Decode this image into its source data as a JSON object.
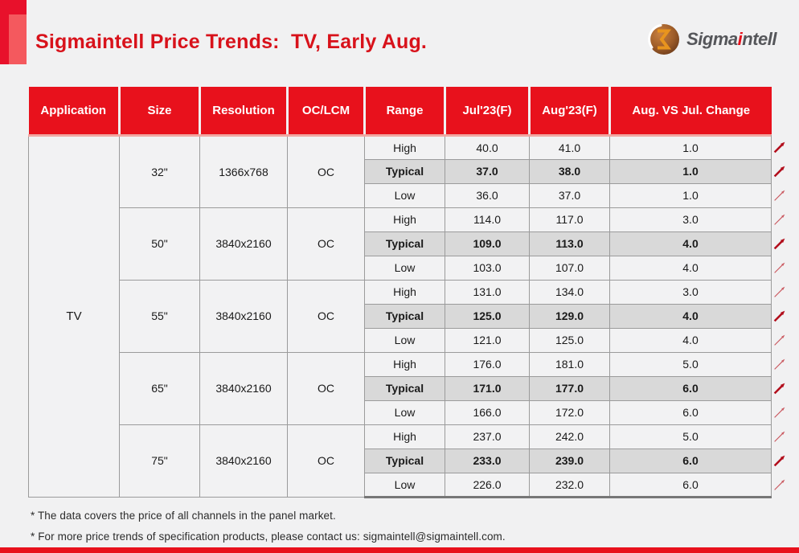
{
  "theme": {
    "page_bg": "#F1F1F2",
    "header_red": "#E8111C",
    "title_red": "#D8121B",
    "accent_dark": "#E8112B",
    "accent_light": "#F4595E",
    "pink_line": "#F1A7A2",
    "grid_gray": "#9B9B9B",
    "row_bg": "#F2F2F3",
    "typical_bg": "#D9D9D9",
    "table_bottom": "#777777",
    "logo_gray": "#55565A",
    "arrow_bold_color": "#B20E1C",
    "arrow_thin_color": "#C9555C"
  },
  "header": {
    "title": "Sigmaintell Price Trends:  TV, Early Aug.",
    "logo_text_pre": "Sigma",
    "logo_text_accent": "i",
    "logo_text_post": "ntell"
  },
  "table": {
    "columns": [
      "Application",
      "Size",
      "Resolution",
      "OC/LCM",
      "Range",
      "Jul'23(F)",
      "Aug'23(F)",
      "Aug. VS Jul. Change"
    ],
    "application": "TV",
    "groups": [
      {
        "size": "32\"",
        "resolution": "1366x768",
        "oc_lcm": "OC",
        "rows": [
          {
            "range": "High",
            "jul": "40.0",
            "aug": "41.0",
            "change": "1.0",
            "arrow": "bold",
            "emphasis": false
          },
          {
            "range": "Typical",
            "jul": "37.0",
            "aug": "38.0",
            "change": "1.0",
            "arrow": "bold",
            "emphasis": true
          },
          {
            "range": "Low",
            "jul": "36.0",
            "aug": "37.0",
            "change": "1.0",
            "arrow": "thin",
            "emphasis": false
          }
        ]
      },
      {
        "size": "50\"",
        "resolution": "3840x2160",
        "oc_lcm": "OC",
        "rows": [
          {
            "range": "High",
            "jul": "114.0",
            "aug": "117.0",
            "change": "3.0",
            "arrow": "thin",
            "emphasis": false
          },
          {
            "range": "Typical",
            "jul": "109.0",
            "aug": "113.0",
            "change": "4.0",
            "arrow": "bold",
            "emphasis": true
          },
          {
            "range": "Low",
            "jul": "103.0",
            "aug": "107.0",
            "change": "4.0",
            "arrow": "thin",
            "emphasis": false
          }
        ]
      },
      {
        "size": "55\"",
        "resolution": "3840x2160",
        "oc_lcm": "OC",
        "rows": [
          {
            "range": "High",
            "jul": "131.0",
            "aug": "134.0",
            "change": "3.0",
            "arrow": "thin",
            "emphasis": false
          },
          {
            "range": "Typical",
            "jul": "125.0",
            "aug": "129.0",
            "change": "4.0",
            "arrow": "bold",
            "emphasis": true
          },
          {
            "range": "Low",
            "jul": "121.0",
            "aug": "125.0",
            "change": "4.0",
            "arrow": "thin",
            "emphasis": false
          }
        ]
      },
      {
        "size": "65\"",
        "resolution": "3840x2160",
        "oc_lcm": "OC",
        "rows": [
          {
            "range": "High",
            "jul": "176.0",
            "aug": "181.0",
            "change": "5.0",
            "arrow": "thin",
            "emphasis": false
          },
          {
            "range": "Typical",
            "jul": "171.0",
            "aug": "177.0",
            "change": "6.0",
            "arrow": "bold",
            "emphasis": true
          },
          {
            "range": "Low",
            "jul": "166.0",
            "aug": "172.0",
            "change": "6.0",
            "arrow": "thin",
            "emphasis": false
          }
        ]
      },
      {
        "size": "75\"",
        "resolution": "3840x2160",
        "oc_lcm": "OC",
        "rows": [
          {
            "range": "High",
            "jul": "237.0",
            "aug": "242.0",
            "change": "5.0",
            "arrow": "thin",
            "emphasis": false
          },
          {
            "range": "Typical",
            "jul": "233.0",
            "aug": "239.0",
            "change": "6.0",
            "arrow": "bold",
            "emphasis": true
          },
          {
            "range": "Low",
            "jul": "226.0",
            "aug": "232.0",
            "change": "6.0",
            "arrow": "thin",
            "emphasis": false
          }
        ]
      }
    ]
  },
  "footnotes": [
    "* The data covers the price of all channels in the panel market.",
    "* For more price trends of specification products, please contact us: sigmaintell@sigmaintell.com."
  ]
}
